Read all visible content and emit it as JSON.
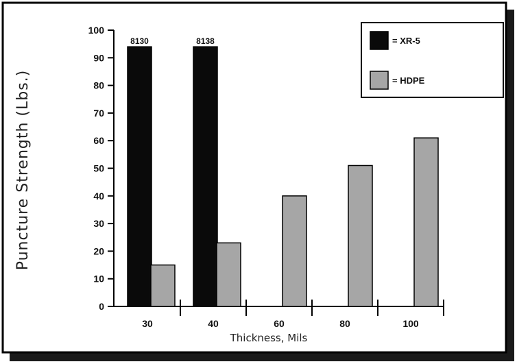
{
  "colors": {
    "frame_border": "#000000",
    "frame_shadow": "#1a1a1a",
    "background": "#ffffff",
    "xr5": "#0a0a0a",
    "hdpe": "#a6a6a6"
  },
  "chart_data": {
    "type": "bar",
    "title": "",
    "xlabel": "Thickness, Mils",
    "ylabel": "Puncture Strength (Lbs.)",
    "categories": [
      "30",
      "40",
      "60",
      "80",
      "100"
    ],
    "ylim": [
      0,
      100
    ],
    "yticks": [
      0,
      10,
      20,
      30,
      40,
      50,
      60,
      70,
      80,
      90,
      100
    ],
    "grid": false,
    "legend_position": "top-right",
    "series": [
      {
        "name": "= XR-5",
        "color": "#0a0a0a",
        "values": [
          94,
          94,
          null,
          null,
          null
        ],
        "labels": [
          "8130",
          "8138",
          "",
          "",
          ""
        ]
      },
      {
        "name": "= HDPE",
        "color": "#a6a6a6",
        "values": [
          15,
          23,
          40,
          51,
          61
        ],
        "labels": [
          "",
          "",
          "",
          "",
          ""
        ]
      }
    ]
  }
}
